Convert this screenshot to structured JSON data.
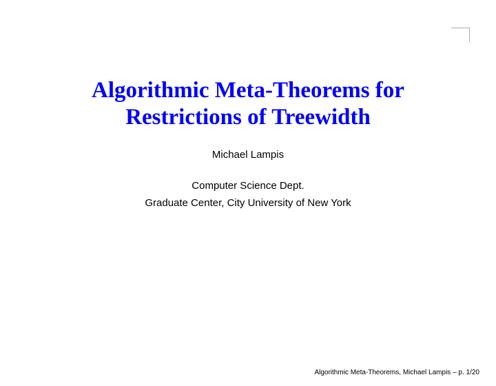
{
  "title_color": "#0000ff",
  "title_fontsize": 33,
  "body_color": "#000000",
  "author_fontsize": 15,
  "affil_fontsize": 15,
  "footer_fontsize": 10,
  "title": {
    "line1": "Algorithmic Meta-Theorems for",
    "line2": "Restrictions of Treewidth"
  },
  "author": "Michael Lampis",
  "affiliation": {
    "line1": "Computer Science Dept.",
    "line2": "Graduate Center, City University of New York"
  },
  "footer": "Algorithmic Meta-Theorems, Michael Lampis – p. 1/20"
}
